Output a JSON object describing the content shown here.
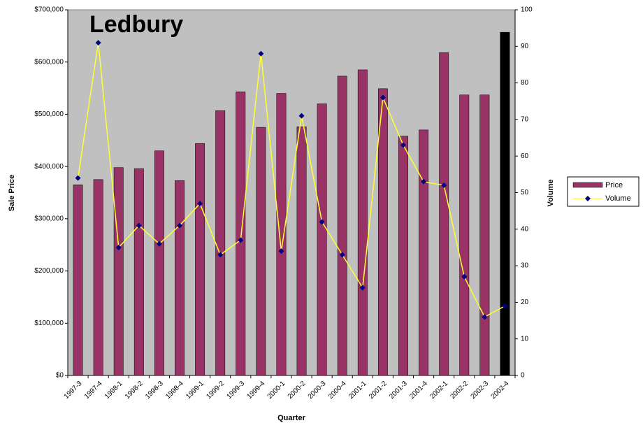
{
  "chart_data": {
    "type": "bar_line",
    "title": "Ledbury",
    "x_label": "Quarter",
    "y_label": "Sale Price",
    "y2_label": "Volume",
    "categories": [
      "1997-3",
      "1997-4",
      "1998-1",
      "1998-2",
      "1998-3",
      "1998-4",
      "1999-1",
      "1999-2",
      "1999-3",
      "1999-4",
      "2000-1",
      "2000-2",
      "2000-3",
      "2000-4",
      "2001-1",
      "2001-2",
      "2001-3",
      "2001-4",
      "2002-1",
      "2002-2",
      "2002-3",
      "2002-4"
    ],
    "series": [
      {
        "name": "Price",
        "type": "bar",
        "color": "#993366",
        "point_colors": [
          "#993366",
          "#993366",
          "#993366",
          "#993366",
          "#993366",
          "#993366",
          "#993366",
          "#993366",
          "#993366",
          "#993366",
          "#993366",
          "#993366",
          "#993366",
          "#993366",
          "#993366",
          "#993366",
          "#993366",
          "#993366",
          "#993366",
          "#993366",
          "#993366",
          "#000000"
        ],
        "values": [
          365000,
          375000,
          398000,
          396000,
          430000,
          373000,
          444000,
          507000,
          543000,
          475000,
          540000,
          476000,
          520000,
          573000,
          585000,
          549000,
          458000,
          470000,
          618000,
          537000,
          537000,
          657000
        ]
      },
      {
        "name": "Volume",
        "type": "line",
        "axis": "y2",
        "color": "#ffff33",
        "marker_color": "#000080",
        "values": [
          54,
          91,
          35,
          41,
          36,
          41,
          47,
          33,
          37,
          88,
          34,
          71,
          42,
          33,
          24,
          76,
          63,
          53,
          52,
          27,
          16,
          19
        ]
      }
    ],
    "ylim": [
      0,
      700000
    ],
    "yticks": [
      {
        "value": 0,
        "label": "$0"
      },
      {
        "value": 100000,
        "label": "$100,000"
      },
      {
        "value": 200000,
        "label": "$200,000"
      },
      {
        "value": 300000,
        "label": "$300,000"
      },
      {
        "value": 400000,
        "label": "$400,000"
      },
      {
        "value": 500000,
        "label": "$500,000"
      },
      {
        "value": 600000,
        "label": "$600,000"
      },
      {
        "value": 700000,
        "label": "$700,000"
      }
    ],
    "y2lim": [
      0,
      100
    ],
    "y2ticks": [
      0,
      10,
      20,
      30,
      40,
      50,
      60,
      70,
      80,
      90,
      100
    ],
    "plot_background": "#c0c0c0",
    "legend": "right"
  }
}
